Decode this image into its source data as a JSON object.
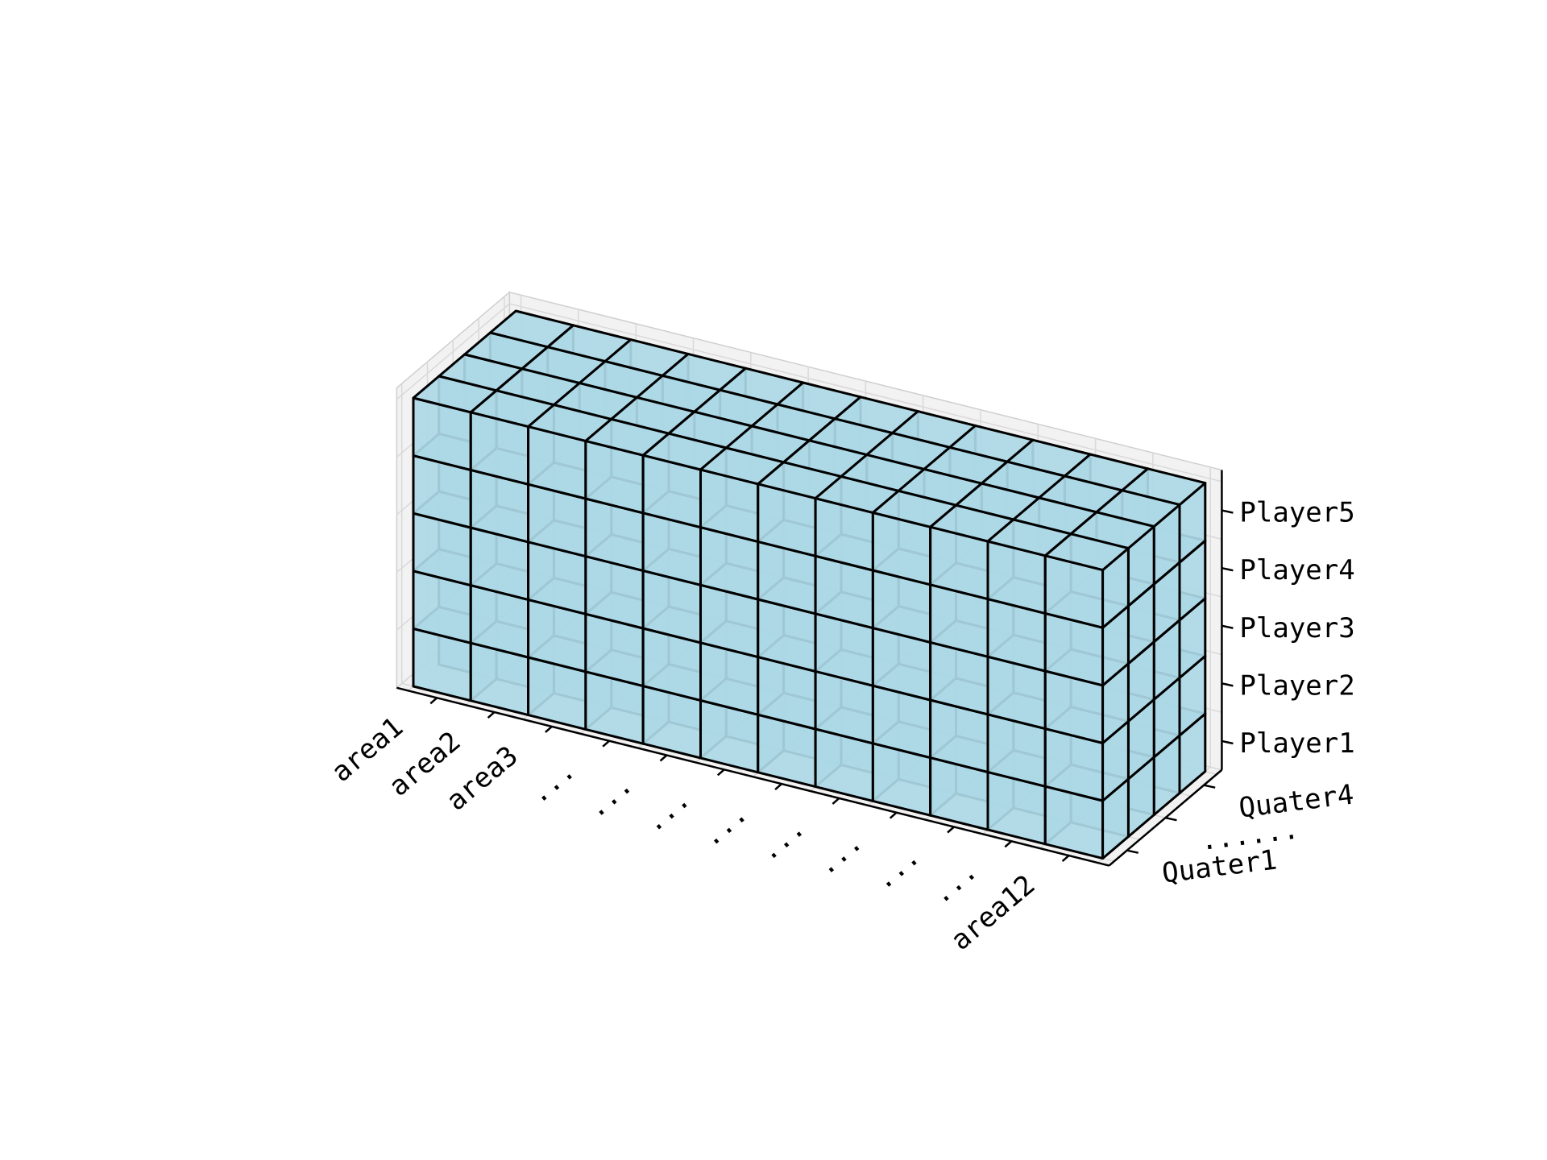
{
  "chart_data": {
    "type": "3d-voxel",
    "title": "",
    "x_axis": {
      "label": "",
      "tick_labels": [
        "area1",
        "area2",
        "area3",
        "...",
        "...",
        "...",
        "...",
        "...",
        "...",
        "...",
        "...",
        "area12"
      ]
    },
    "y_axis": {
      "label": "",
      "tick_labels": [
        "Quater1",
        "......",
        "Quater4"
      ]
    },
    "z_axis": {
      "label": "",
      "tick_labels": [
        "Player1",
        "Player2",
        "Player3",
        "Player4",
        "Player5"
      ]
    },
    "grid_shape": {
      "x": 12,
      "y": 4,
      "z": 5
    },
    "filled": "all",
    "face_color": "#add8e6",
    "edge_color": "#000000",
    "pane_color": "#f2f2f2",
    "grid": true
  }
}
